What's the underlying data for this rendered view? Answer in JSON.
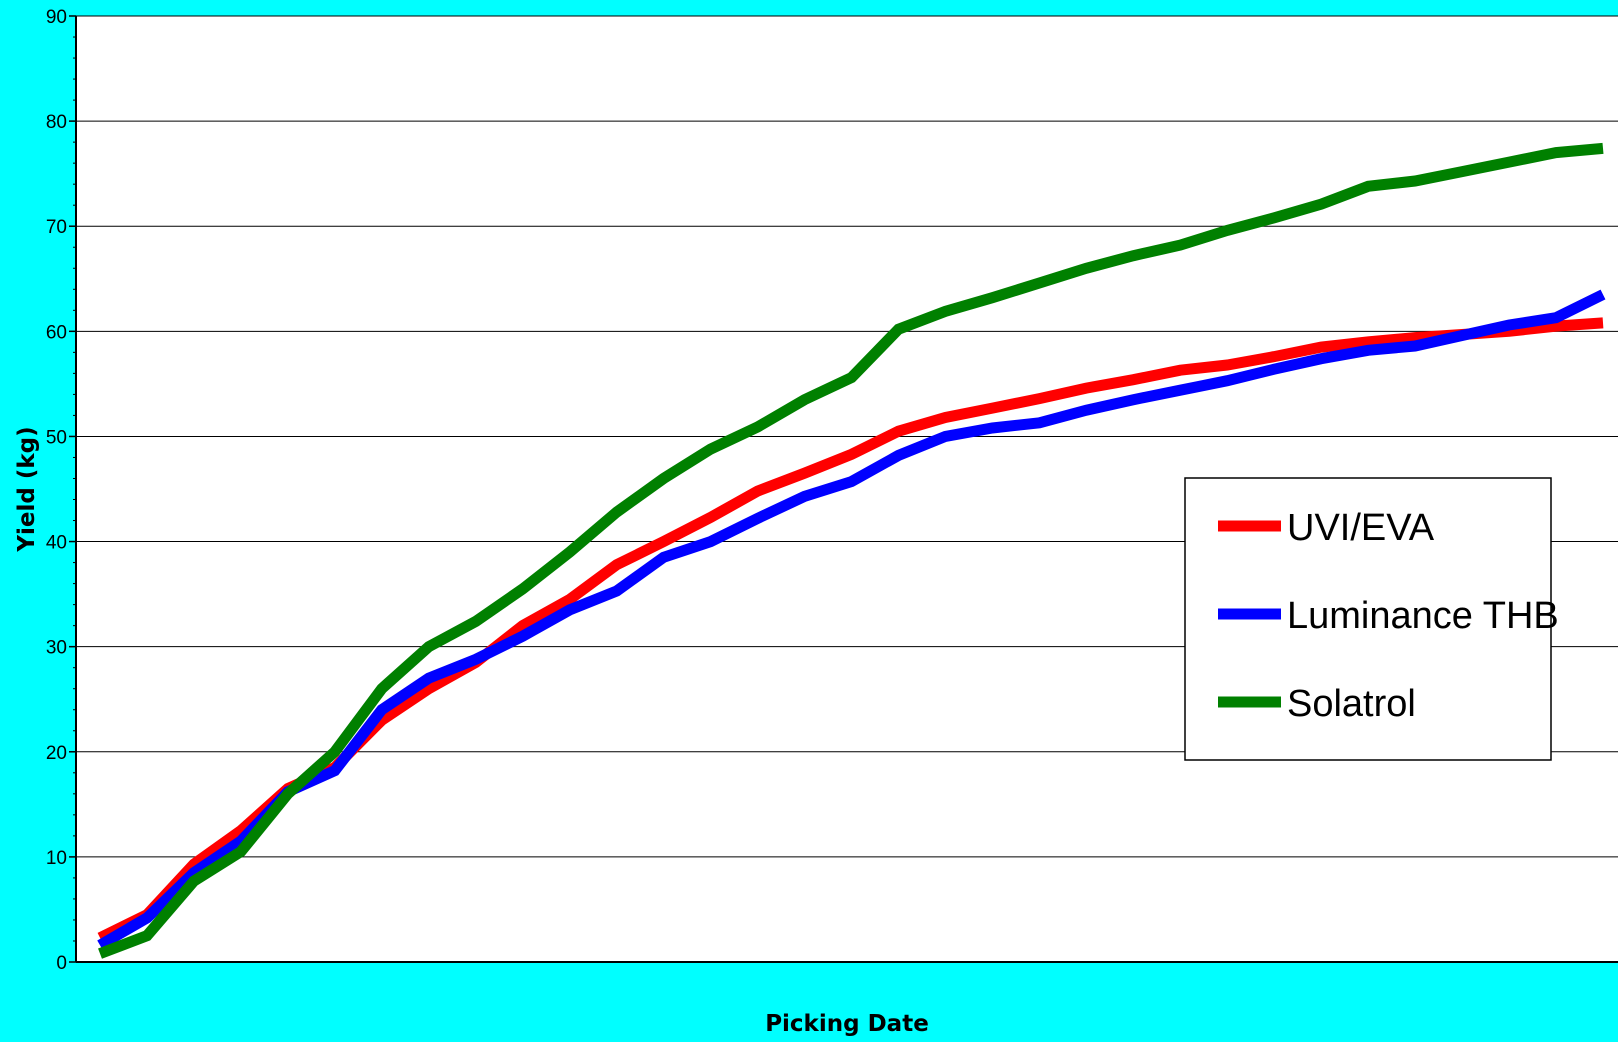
{
  "chart_data": {
    "type": "line",
    "title": "",
    "xlabel": "Picking Date",
    "ylabel": "Yield (kg)",
    "ylim": [
      0,
      90
    ],
    "yticks": [
      0,
      10,
      20,
      30,
      40,
      50,
      60,
      70,
      80,
      90
    ],
    "grid": true,
    "legend_position": "right",
    "x": [
      1,
      2,
      3,
      4,
      5,
      6,
      7,
      8,
      9,
      10,
      11,
      12,
      13,
      14,
      15,
      16,
      17,
      18,
      19,
      20,
      21,
      22,
      23,
      24,
      25,
      26,
      27,
      28,
      29,
      30,
      31,
      32,
      33
    ],
    "series": [
      {
        "name": "UVI/EVA",
        "color": "#FF0000",
        "values": [
          2.3,
          4.5,
          9.3,
          12.5,
          16.5,
          18.5,
          23.0,
          26.0,
          28.5,
          32.0,
          34.5,
          37.8,
          40.0,
          42.3,
          44.8,
          46.5,
          48.3,
          50.5,
          51.8,
          52.7,
          53.6,
          54.6,
          55.4,
          56.3,
          56.8,
          57.6,
          58.5,
          59.0,
          59.4,
          59.7,
          60.0,
          60.5,
          60.8
        ]
      },
      {
        "name": "Luminance THB",
        "color": "#0000FF",
        "values": [
          1.6,
          4.2,
          8.5,
          11.5,
          16.2,
          18.2,
          24.0,
          27.0,
          28.8,
          31.0,
          33.5,
          35.3,
          38.5,
          40.0,
          42.2,
          44.3,
          45.7,
          48.2,
          50.0,
          50.8,
          51.3,
          52.5,
          53.5,
          54.4,
          55.3,
          56.4,
          57.4,
          58.2,
          58.6,
          59.6,
          60.6,
          61.3,
          63.5
        ]
      },
      {
        "name": "Solatrol",
        "color": "#008000",
        "values": [
          0.8,
          2.5,
          7.7,
          10.5,
          16.0,
          20.0,
          26.0,
          30.0,
          32.4,
          35.5,
          39.0,
          42.8,
          46.0,
          48.8,
          50.9,
          53.5,
          55.6,
          60.2,
          61.9,
          63.2,
          64.6,
          66.0,
          67.2,
          68.2,
          69.6,
          70.8,
          72.1,
          73.8,
          74.3,
          75.2,
          76.1,
          77.0,
          77.4
        ]
      }
    ]
  },
  "colors": {
    "background": "#00FFFF",
    "plot_area": "#FFFFFF",
    "gridline": "#000000"
  }
}
